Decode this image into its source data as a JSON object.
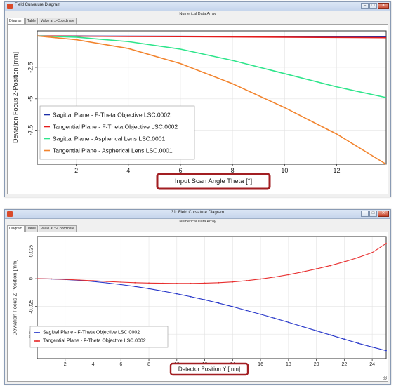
{
  "windows": [
    {
      "title": "Field Curvature Diagram",
      "subtitle": "Numerical Data Array",
      "tabs": [
        "Diagram",
        "Table",
        "Value at x-Coordinate"
      ],
      "controls": [
        "minimize",
        "maximize",
        "close"
      ]
    },
    {
      "title": "31: Field Curvature Diagram",
      "subtitle": "Numerical Data Array",
      "tabs": [
        "Diagram",
        "Table",
        "Value at x-Coordinate"
      ],
      "controls": [
        "minimize",
        "maximize",
        "close"
      ]
    }
  ],
  "highlight_color": "#a21e22",
  "chart_data": [
    {
      "type": "line",
      "xlabel": "Input Scan Angle Theta [°]",
      "ylabel": "Deviation Focus Z-Position [mm]",
      "xlim": [
        0.5,
        13.9
      ],
      "ylim": [
        -10.2,
        0.4
      ],
      "xticks": [
        "2",
        "4",
        "6",
        "8",
        "10",
        "12"
      ],
      "yticks": [
        "-2.5",
        "-5",
        "-7.5"
      ],
      "grid": true,
      "legend_position": "bottom-left",
      "series": [
        {
          "name": "Sagittal Plane - F-Theta Objective LSC.0002",
          "color": "#1c2fa8",
          "markers": false,
          "x": [
            0.5,
            2,
            4,
            6,
            8,
            10,
            12,
            13.9
          ],
          "y": [
            0,
            -0.01,
            -0.02,
            -0.03,
            -0.04,
            -0.05,
            -0.06,
            -0.07
          ]
        },
        {
          "name": "Tangential Plane - F-Theta Objective LSC.0002",
          "color": "#e41b1b",
          "markers": false,
          "x": [
            0.5,
            2,
            4,
            6,
            8,
            10,
            12,
            13.9
          ],
          "y": [
            0,
            -0.02,
            -0.04,
            -0.06,
            -0.08,
            -0.1,
            -0.12,
            -0.14
          ]
        },
        {
          "name": "Sagittal Plane - Aspherical Lens LSC.0001",
          "color": "#2ee58b",
          "markers": false,
          "x": [
            0.5,
            2,
            4,
            6,
            8,
            10,
            12,
            13.9
          ],
          "y": [
            0,
            -0.1,
            -0.45,
            -1.05,
            -1.95,
            -3.0,
            -4.05,
            -4.9
          ]
        },
        {
          "name": "Tangential Plane - Aspherical Lens LSC.0001",
          "color": "#f2842e",
          "markers": false,
          "x": [
            0.5,
            2,
            4,
            6,
            8,
            10,
            12,
            13.9
          ],
          "y": [
            0,
            -0.3,
            -1.0,
            -2.2,
            -3.8,
            -5.7,
            -7.8,
            -10.2
          ]
        }
      ]
    },
    {
      "type": "line",
      "xlabel": "Detector Position Y [mm]",
      "ylabel": "Deviation Focus Z-Position [mm]",
      "xlim": [
        0,
        25
      ],
      "ylim": [
        -0.072,
        0.038
      ],
      "xticks": [
        "2",
        "4",
        "6",
        "8",
        "10",
        "12",
        "14",
        "16",
        "18",
        "20",
        "22",
        "24"
      ],
      "yticks": [
        "0.025",
        "0",
        "-0.025",
        "-0.05"
      ],
      "grid": true,
      "legend_position": "bottom-left",
      "series": [
        {
          "name": "Sagittal Plane - F-Theta Objective LSC.0002",
          "color": "#2333c8",
          "markers": true,
          "x": [
            0,
            1,
            2,
            3,
            4,
            5,
            6,
            7,
            8,
            9,
            10,
            11,
            12,
            13,
            14,
            15,
            16,
            17,
            18,
            19,
            20,
            21,
            22,
            23,
            24,
            25
          ],
          "y": [
            0,
            -0.0003,
            -0.0008,
            -0.0015,
            -0.0025,
            -0.0038,
            -0.0053,
            -0.007,
            -0.009,
            -0.0112,
            -0.0136,
            -0.0162,
            -0.019,
            -0.022,
            -0.0252,
            -0.0286,
            -0.032,
            -0.0356,
            -0.0393,
            -0.0431,
            -0.0469,
            -0.0507,
            -0.0545,
            -0.0582,
            -0.0616,
            -0.0648
          ]
        },
        {
          "name": "Tangential Plane - F-Theta Objective LSC.0002",
          "color": "#e82f2f",
          "markers": true,
          "x": [
            0,
            1,
            2,
            3,
            4,
            5,
            6,
            7,
            8,
            9,
            10,
            11,
            12,
            13,
            14,
            15,
            16,
            17,
            18,
            19,
            20,
            21,
            22,
            23,
            24,
            25
          ],
          "y": [
            0,
            -0.0002,
            -0.0006,
            -0.0012,
            -0.0018,
            -0.0025,
            -0.0031,
            -0.0036,
            -0.0039,
            -0.0041,
            -0.0042,
            -0.0042,
            -0.004,
            -0.0036,
            -0.0029,
            -0.0018,
            -0.0003,
            0.0015,
            0.0036,
            0.0061,
            0.0088,
            0.0118,
            0.0152,
            0.0191,
            0.0235,
            0.0318
          ]
        }
      ]
    }
  ]
}
